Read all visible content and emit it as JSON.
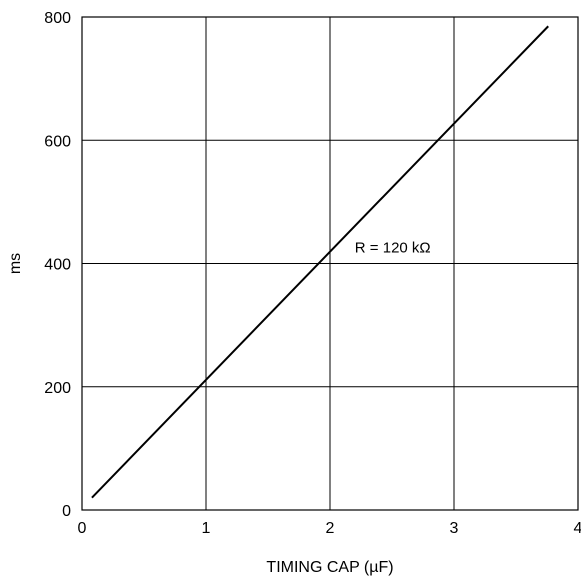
{
  "chart_data": {
    "type": "line",
    "title": "",
    "xlabel": "TIMING CAP (µF)",
    "ylabel": "ms",
    "xlim": [
      0,
      4
    ],
    "ylim": [
      0,
      800
    ],
    "x_ticks": [
      0,
      1,
      2,
      3,
      4
    ],
    "y_ticks": [
      0,
      200,
      400,
      600,
      800
    ],
    "x_tick_labels": [
      "0",
      "1",
      "2",
      "3",
      "4"
    ],
    "y_tick_labels": [
      "0",
      "200",
      "400",
      "600",
      "800"
    ],
    "grid": true,
    "legend": "none",
    "series": [
      {
        "x": [
          0.08,
          3.76
        ],
        "y": [
          20,
          785
        ],
        "color": "#000000"
      }
    ],
    "annotations": [
      {
        "text": "R = 120 kΩ",
        "x": 2.2,
        "y": 415
      }
    ]
  }
}
